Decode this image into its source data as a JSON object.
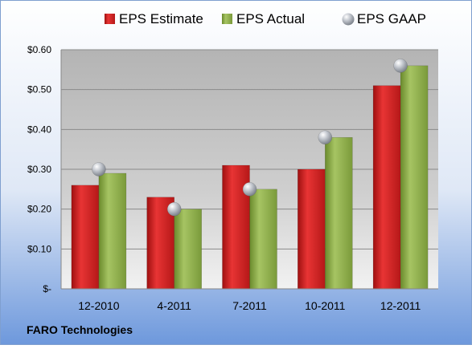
{
  "chart_data": {
    "type": "bar",
    "title": "",
    "footer_label": "FARO Technologies",
    "categories": [
      "12-2010",
      "4-2011",
      "7-2011",
      "10-2011",
      "12-2011"
    ],
    "series": [
      {
        "name": "EPS Estimate",
        "kind": "bar",
        "color": "#d42424",
        "values": [
          0.26,
          0.23,
          0.31,
          0.3,
          0.51
        ]
      },
      {
        "name": "EPS Actual",
        "kind": "bar",
        "color": "#8fb04a",
        "values": [
          0.29,
          0.2,
          0.25,
          0.38,
          0.56
        ]
      },
      {
        "name": "EPS GAAP",
        "kind": "marker",
        "color": "#b8bcc4",
        "values": [
          0.3,
          0.2,
          0.25,
          0.38,
          0.56
        ]
      }
    ],
    "y_ticks": [
      "$-",
      "$0.10",
      "$0.20",
      "$0.30",
      "$0.40",
      "$0.50",
      "$0.60"
    ],
    "ylim": [
      0,
      0.6
    ],
    "grid": true,
    "legend_position": "top",
    "background_color": "#8fb1e6"
  }
}
